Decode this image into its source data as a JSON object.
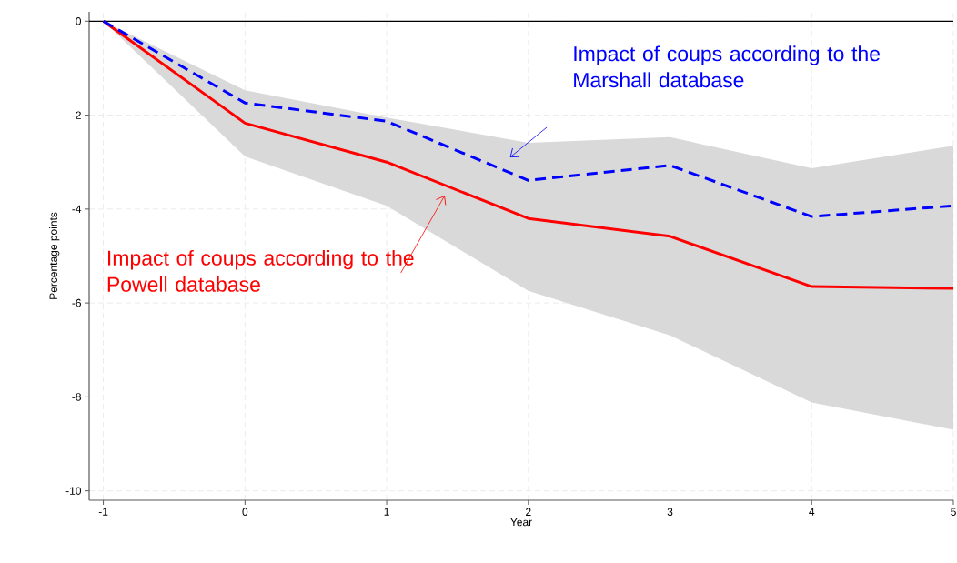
{
  "chart_data": {
    "type": "line",
    "xlabel": "Year",
    "ylabel": "Percentage points",
    "x": [
      -1,
      0,
      1,
      2,
      3,
      4,
      5
    ],
    "series": [
      {
        "color": "#ff0000",
        "line_style": "solid",
        "values": [
          0,
          -2.17,
          -3.0,
          -4.2,
          -4.58,
          -5.65,
          -5.69
        ],
        "lower": [
          0,
          -2.88,
          -3.93,
          -5.74,
          -6.69,
          -8.12,
          -8.7
        ],
        "upper": [
          0,
          -1.47,
          -2.05,
          -2.59,
          -2.47,
          -3.13,
          -2.65
        ]
      },
      {
        "color": "#0000ff",
        "line_style": "dashed",
        "values": [
          0,
          -1.74,
          -2.13,
          -3.39,
          -3.07,
          -4.16,
          -3.93
        ]
      }
    ],
    "xlim": [
      -1.1,
      5
    ],
    "ylim": [
      -10.2,
      0.2
    ],
    "xticks": [
      -1,
      0,
      1,
      2,
      3,
      4,
      5
    ],
    "yticks": [
      -10,
      -8,
      -6,
      -4,
      -2,
      0
    ],
    "grid": true,
    "marker": "none",
    "ref_lines": [
      {
        "axis": "y",
        "value": 0,
        "color": "#000000"
      }
    ],
    "annotations": [
      "Impact of coups according to the Powell database",
      "Impact of coups according to the Marshall database"
    ]
  }
}
